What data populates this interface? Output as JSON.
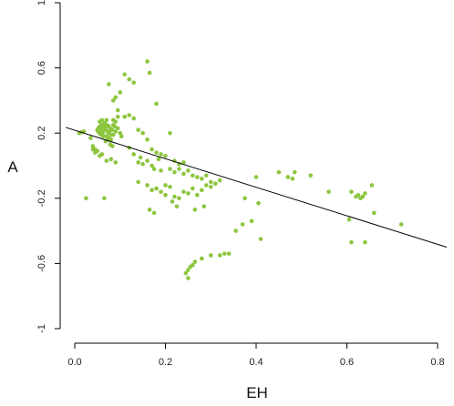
{
  "chart_data": {
    "type": "scatter",
    "xlabel": "EH",
    "ylabel": "A",
    "xlim": [
      0.0,
      0.8
    ],
    "ylim": [
      -1.0,
      1.0
    ],
    "x_ticks": [
      0.0,
      0.2,
      0.4,
      0.6,
      0.8
    ],
    "y_ticks": [
      -1.0,
      -0.6,
      -0.2,
      0.2,
      0.6,
      1.0
    ],
    "x_tick_labels": [
      "0.0",
      "0.2",
      "0.4",
      "0.6",
      "0.8"
    ],
    "y_tick_labels": [
      "-1",
      "-0.6",
      "-0.2",
      "0.2",
      "0.6",
      "1"
    ],
    "grid": false,
    "point_color": "#8dc63f",
    "line_color": "#000000",
    "regression_line": {
      "x": [
        -0.02,
        0.82
      ],
      "y": [
        0.235,
        -0.5
      ]
    },
    "points": {
      "x": [
        0.01,
        0.015,
        0.02,
        0.035,
        0.04,
        0.045,
        0.05,
        0.052,
        0.054,
        0.056,
        0.058,
        0.06,
        0.062,
        0.064,
        0.066,
        0.068,
        0.07,
        0.072,
        0.074,
        0.076,
        0.078,
        0.08,
        0.082,
        0.085,
        0.088,
        0.09,
        0.095,
        0.1,
        0.103,
        0.055,
        0.06,
        0.065,
        0.07,
        0.075,
        0.08,
        0.058,
        0.062,
        0.066,
        0.05,
        0.06,
        0.07,
        0.08,
        0.09,
        0.055,
        0.065,
        0.075,
        0.085,
        0.07,
        0.063,
        0.068,
        0.073,
        0.078,
        0.083,
        0.11,
        0.12,
        0.13,
        0.16,
        0.165,
        0.18,
        0.1,
        0.09,
        0.075,
        0.085,
        0.095,
        0.11,
        0.12,
        0.13,
        0.085,
        0.095,
        0.14,
        0.15,
        0.16,
        0.17,
        0.18,
        0.19,
        0.2,
        0.21,
        0.22,
        0.23,
        0.24,
        0.06,
        0.07,
        0.04,
        0.045,
        0.05,
        0.055,
        0.08,
        0.09,
        0.12,
        0.13,
        0.14,
        0.145,
        0.15,
        0.16,
        0.17,
        0.175,
        0.185,
        0.19,
        0.21,
        0.22,
        0.23,
        0.24,
        0.25,
        0.26,
        0.27,
        0.28,
        0.29,
        0.3,
        0.31,
        0.32,
        0.14,
        0.16,
        0.17,
        0.18,
        0.19,
        0.2,
        0.2,
        0.21,
        0.22,
        0.23,
        0.24,
        0.25,
        0.26,
        0.27,
        0.28,
        0.29,
        0.3,
        0.31,
        0.025,
        0.065,
        0.165,
        0.175,
        0.215,
        0.225,
        0.265,
        0.285,
        0.245,
        0.25,
        0.255,
        0.26,
        0.265,
        0.28,
        0.3,
        0.32,
        0.33,
        0.34,
        0.355,
        0.37,
        0.375,
        0.39,
        0.4,
        0.405,
        0.41,
        0.45,
        0.47,
        0.48,
        0.485,
        0.52,
        0.56,
        0.605,
        0.61,
        0.62,
        0.625,
        0.63,
        0.635,
        0.64,
        0.655,
        0.66,
        0.72,
        0.61,
        0.64,
        0.25
      ],
      "y": [
        0.2,
        0.205,
        0.21,
        0.17,
        0.12,
        0.1,
        0.215,
        0.23,
        0.2,
        0.225,
        0.21,
        0.25,
        0.23,
        0.24,
        0.26,
        0.22,
        0.24,
        0.21,
        0.245,
        0.2,
        0.23,
        0.19,
        0.22,
        0.25,
        0.24,
        0.21,
        0.23,
        0.2,
        0.18,
        0.27,
        0.28,
        0.26,
        0.18,
        0.17,
        0.16,
        0.19,
        0.2,
        0.23,
        0.22,
        0.21,
        0.25,
        0.22,
        0.27,
        0.24,
        0.23,
        0.2,
        0.19,
        0.28,
        0.18,
        0.15,
        0.16,
        0.13,
        0.12,
        0.56,
        0.53,
        0.51,
        0.64,
        0.57,
        0.38,
        0.45,
        0.42,
        0.5,
        0.4,
        0.34,
        0.3,
        0.31,
        0.29,
        0.28,
        0.3,
        0.22,
        0.2,
        0.16,
        0.1,
        0.08,
        0.07,
        0.06,
        0.2,
        0.03,
        0.01,
        0.02,
        0.07,
        0.03,
        0.1,
        0.08,
        0.09,
        0.06,
        0.04,
        0.02,
        0.11,
        0.07,
        0.02,
        0.05,
        0.01,
        0.03,
        0.0,
        -0.02,
        0.04,
        -0.03,
        -0.02,
        -0.04,
        -0.02,
        -0.05,
        -0.03,
        -0.06,
        -0.07,
        -0.08,
        -0.06,
        -0.1,
        -0.11,
        -0.09,
        -0.1,
        -0.12,
        -0.15,
        -0.14,
        -0.16,
        -0.18,
        -0.12,
        -0.13,
        -0.19,
        -0.2,
        -0.16,
        -0.17,
        -0.14,
        -0.18,
        -0.15,
        -0.12,
        -0.13,
        -0.11,
        -0.2,
        -0.2,
        -0.27,
        -0.29,
        -0.22,
        -0.25,
        -0.27,
        -0.25,
        -0.66,
        -0.64,
        -0.62,
        -0.61,
        -0.59,
        -0.57,
        -0.55,
        -0.55,
        -0.54,
        -0.54,
        -0.4,
        -0.36,
        -0.2,
        -0.34,
        -0.07,
        -0.23,
        -0.45,
        -0.04,
        -0.07,
        -0.08,
        -0.04,
        -0.06,
        -0.16,
        -0.33,
        -0.16,
        -0.19,
        -0.18,
        -0.2,
        -0.19,
        -0.17,
        -0.12,
        -0.29,
        -0.36,
        -0.47,
        -0.47,
        -0.69
      ]
    }
  }
}
